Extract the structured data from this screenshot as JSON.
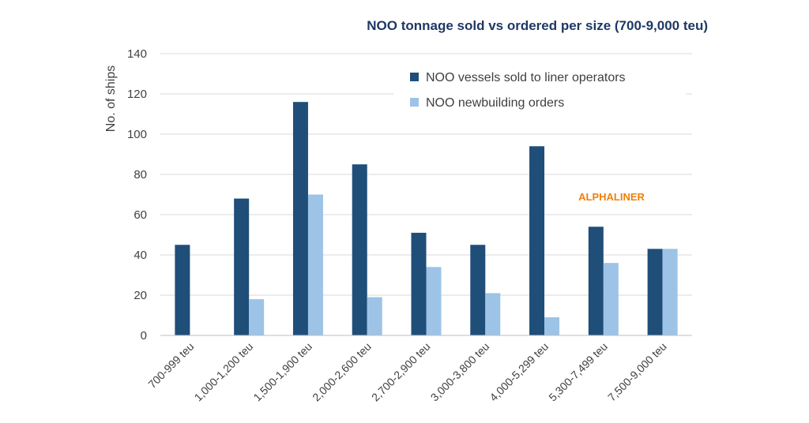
{
  "chart_data": {
    "type": "bar",
    "title": "NOO tonnage sold vs ordered per size (700-9,000 teu)",
    "xlabel": "",
    "ylabel": "No. of ships",
    "ylim": [
      0,
      140
    ],
    "yticks": [
      0,
      20,
      40,
      60,
      80,
      100,
      120,
      140
    ],
    "grid": true,
    "legend_position": "top-right",
    "categories": [
      "700-999 teu",
      "1,000-1,200 teu",
      "1,500-1,900 teu",
      "2,000-2,600 teu",
      "2,700-2,900 teu",
      "3,000-3,800 teu",
      "4,000-5,299 teu",
      "5,300-7,499 teu",
      "7,500-9,000 teu"
    ],
    "series": [
      {
        "name": "NOO vessels sold to liner operators",
        "color": "#1f4e79",
        "values": [
          45,
          68,
          116,
          85,
          51,
          45,
          94,
          54,
          43
        ]
      },
      {
        "name": "NOO newbuilding orders",
        "color": "#9dc3e6",
        "values": [
          0,
          18,
          70,
          19,
          34,
          21,
          9,
          36,
          43
        ]
      }
    ],
    "annotation": {
      "text": "ALPHALINER",
      "color": "#f07f09"
    },
    "title_color": "#1f3864"
  }
}
